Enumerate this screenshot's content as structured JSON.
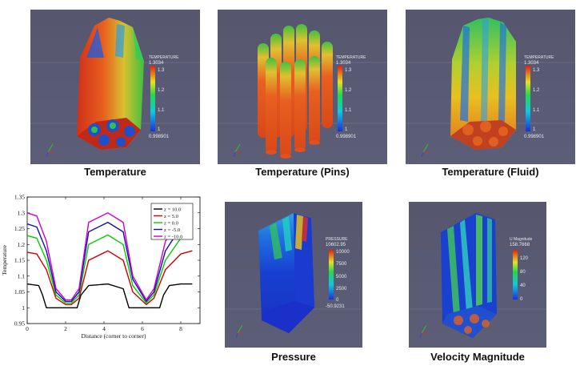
{
  "panels": [
    {
      "caption": "Temperature",
      "colorbar": {
        "title": "TEMPERATURE",
        "max": "1.3034",
        "ticks": [
          "1.3",
          "1.2",
          "1.1",
          "1"
        ],
        "min": "0.998901"
      }
    },
    {
      "caption": "Temperature (Pins)",
      "colorbar": {
        "title": "TEMPERATURE",
        "max": "1.3034",
        "ticks": [
          "1.3",
          "1.2",
          "1.1",
          "1"
        ],
        "min": "0.998901"
      }
    },
    {
      "caption": "Temperature (Fluid)",
      "colorbar": {
        "title": "TEMPERATURE",
        "max": "1.3034",
        "ticks": [
          "1.3",
          "1.2",
          "1.1",
          "1"
        ],
        "min": "0.998901"
      }
    },
    {
      "caption": "Pressure",
      "colorbar": {
        "title": "PRESSURE",
        "max": "10602.95",
        "ticks": [
          "10000",
          "7500",
          "5000",
          "2500",
          "0"
        ],
        "min": "-50.9231"
      }
    },
    {
      "caption": "Velocity Magnitude",
      "colorbar": {
        "title": "U Magnitude",
        "max": "158.7668",
        "ticks": [
          "120",
          "80",
          "40",
          "0"
        ],
        "min": ""
      }
    }
  ],
  "chart_data": {
    "type": "line",
    "xlabel": "Distance (corner to corner)",
    "ylabel": "Temperature",
    "xlim": [
      0,
      9
    ],
    "ylim": [
      0.95,
      1.35
    ],
    "xticks": [
      "0",
      "2",
      "4",
      "6",
      "8"
    ],
    "yticks": [
      "0.95",
      "1",
      "1.05",
      "1.1",
      "1.15",
      "1.2",
      "1.25",
      "1.3",
      "1.35"
    ],
    "legend_position": "top-right",
    "series": [
      {
        "name": "z = 10.0",
        "color": "#000000",
        "x": [
          0,
          0.6,
          0.8,
          1.0,
          2.6,
          2.8,
          3.2,
          4.2,
          5.0,
          5.3,
          6.9,
          7.1,
          7.4,
          8.0,
          8.6
        ],
        "y": [
          1.075,
          1.07,
          1.04,
          1.0,
          1.0,
          1.04,
          1.07,
          1.075,
          1.06,
          1.0,
          1.0,
          1.04,
          1.07,
          1.075,
          1.075
        ]
      },
      {
        "name": "z = 5.0",
        "color": "#cc0000",
        "x": [
          0,
          0.5,
          1.0,
          1.5,
          2.0,
          2.3,
          2.7,
          3.2,
          4.2,
          5.0,
          5.5,
          6.2,
          6.6,
          7.2,
          8.0,
          8.6
        ],
        "y": [
          1.175,
          1.17,
          1.12,
          1.03,
          1.01,
          1.01,
          1.03,
          1.15,
          1.18,
          1.15,
          1.05,
          1.01,
          1.03,
          1.12,
          1.17,
          1.18
        ]
      },
      {
        "name": "z = 0.0",
        "color": "#00cc00",
        "x": [
          0,
          0.5,
          1.0,
          1.5,
          2.0,
          2.3,
          2.7,
          3.2,
          4.2,
          5.0,
          5.5,
          6.2,
          6.6,
          7.2,
          8.0,
          8.6
        ],
        "y": [
          1.228,
          1.22,
          1.15,
          1.04,
          1.015,
          1.015,
          1.04,
          1.2,
          1.23,
          1.2,
          1.07,
          1.015,
          1.04,
          1.15,
          1.22,
          1.23
        ]
      },
      {
        "name": "z = -5.0",
        "color": "#1010b0",
        "x": [
          0,
          0.5,
          1.0,
          1.5,
          2.0,
          2.3,
          2.7,
          3.2,
          4.2,
          5.0,
          5.5,
          6.2,
          6.6,
          7.2,
          8.0,
          8.6
        ],
        "y": [
          1.265,
          1.255,
          1.18,
          1.05,
          1.02,
          1.02,
          1.05,
          1.24,
          1.27,
          1.24,
          1.09,
          1.02,
          1.05,
          1.18,
          1.255,
          1.265
        ]
      },
      {
        "name": "z = -10.0",
        "color": "#cc00cc",
        "x": [
          0,
          0.5,
          1.0,
          1.5,
          2.0,
          2.3,
          2.7,
          3.2,
          4.2,
          5.0,
          5.5,
          6.2,
          6.6,
          7.2,
          8.0,
          8.6
        ],
        "y": [
          1.3,
          1.29,
          1.21,
          1.06,
          1.025,
          1.025,
          1.06,
          1.27,
          1.3,
          1.27,
          1.1,
          1.025,
          1.06,
          1.21,
          1.29,
          1.3
        ]
      }
    ]
  }
}
